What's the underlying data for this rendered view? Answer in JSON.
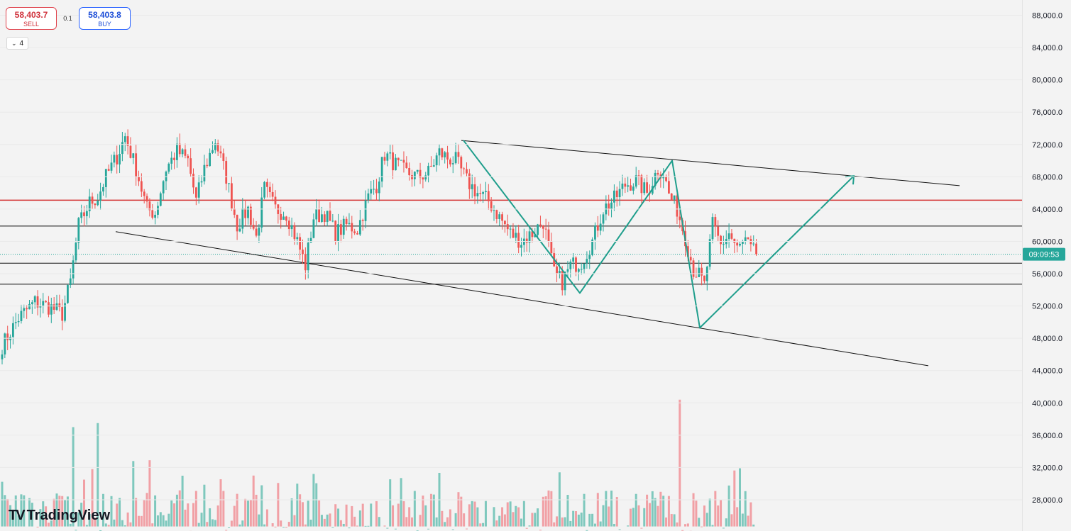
{
  "trade": {
    "sell_price": "58,403.7",
    "sell_label": "SELL",
    "spread": "0.1",
    "buy_price": "58,403.8",
    "buy_label": "BUY"
  },
  "collapse": {
    "count": "4"
  },
  "brand": {
    "name": "TradingView",
    "icon": "tradingview-logo-icon"
  },
  "colors": {
    "bull": "#26a69a",
    "bear": "#ef5350",
    "vol_bull": "#7ec8bd",
    "vol_bear": "#f1a0a5",
    "resistance": "#d32f2f",
    "pattern": "#1f9e8c",
    "price_tag": "#26a69a"
  },
  "chart_data": {
    "type": "candlestick",
    "y_ticks": [
      "88,000.0",
      "84,000.0",
      "80,000.0",
      "76,000.0",
      "72,000.0",
      "68,000.0",
      "64,000.0",
      "60,000.0",
      "56,000.0",
      "52,000.0",
      "48,000.0",
      "44,000.0",
      "40,000.0",
      "36,000.0",
      "32,000.0",
      "28,000.0"
    ],
    "ylim": [
      24000,
      89500
    ],
    "current_price": 58403.7,
    "countdown": "09:09:53",
    "horizontal_levels": [
      {
        "price": 65100,
        "role": "resistance"
      },
      {
        "price": 61900,
        "role": "level"
      },
      {
        "price": 57300,
        "role": "level"
      },
      {
        "price": 54700,
        "role": "level"
      }
    ],
    "trend_lines": [
      {
        "from": [
          650,
          72500
        ],
        "to": [
          1352,
          66900
        ]
      },
      {
        "from": [
          163,
          61200
        ],
        "to": [
          1308,
          44600
        ]
      }
    ],
    "pattern_path": [
      [
        653,
        72500
      ],
      [
        817,
        53600
      ],
      [
        947,
        70000
      ],
      [
        986,
        49300
      ],
      [
        1203,
        68100
      ]
    ],
    "anchors": [
      {
        "i": 0,
        "p": 47100
      },
      {
        "i": 6,
        "p": 50500
      },
      {
        "i": 12,
        "p": 52500
      },
      {
        "i": 18,
        "p": 51800
      },
      {
        "i": 22,
        "p": 51000
      },
      {
        "i": 25,
        "p": 55000
      },
      {
        "i": 28,
        "p": 62000
      },
      {
        "i": 32,
        "p": 64800
      },
      {
        "i": 35,
        "p": 65500
      },
      {
        "i": 38,
        "p": 68000
      },
      {
        "i": 42,
        "p": 70500
      },
      {
        "i": 45,
        "p": 73000
      },
      {
        "i": 49,
        "p": 69000
      },
      {
        "i": 53,
        "p": 64000
      },
      {
        "i": 56,
        "p": 63500
      },
      {
        "i": 60,
        "p": 69000
      },
      {
        "i": 64,
        "p": 71200
      },
      {
        "i": 68,
        "p": 70000
      },
      {
        "i": 71,
        "p": 65000
      },
      {
        "i": 74,
        "p": 69000
      },
      {
        "i": 78,
        "p": 72500
      },
      {
        "i": 82,
        "p": 68000
      },
      {
        "i": 86,
        "p": 62000
      },
      {
        "i": 90,
        "p": 64000
      },
      {
        "i": 93,
        "p": 60500
      },
      {
        "i": 96,
        "p": 66500
      },
      {
        "i": 100,
        "p": 64000
      },
      {
        "i": 104,
        "p": 63500
      },
      {
        "i": 108,
        "p": 60000
      },
      {
        "i": 111,
        "p": 57000
      },
      {
        "i": 114,
        "p": 63000
      },
      {
        "i": 118,
        "p": 63500
      },
      {
        "i": 122,
        "p": 61000
      },
      {
        "i": 126,
        "p": 62000
      },
      {
        "i": 130,
        "p": 61500
      },
      {
        "i": 134,
        "p": 65500
      },
      {
        "i": 137,
        "p": 67000
      },
      {
        "i": 140,
        "p": 70800
      },
      {
        "i": 144,
        "p": 69500
      },
      {
        "i": 148,
        "p": 68500
      },
      {
        "i": 152,
        "p": 68000
      },
      {
        "i": 156,
        "p": 68500
      },
      {
        "i": 160,
        "p": 71000
      },
      {
        "i": 163,
        "p": 70300
      },
      {
        "i": 166,
        "p": 70000
      },
      {
        "i": 170,
        "p": 67500
      },
      {
        "i": 174,
        "p": 66000
      },
      {
        "i": 178,
        "p": 65000
      },
      {
        "i": 182,
        "p": 63000
      },
      {
        "i": 186,
        "p": 61000
      },
      {
        "i": 190,
        "p": 60000
      },
      {
        "i": 194,
        "p": 61000
      },
      {
        "i": 198,
        "p": 62500
      },
      {
        "i": 202,
        "p": 56000
      },
      {
        "i": 205,
        "p": 55000
      },
      {
        "i": 208,
        "p": 57000
      },
      {
        "i": 212,
        "p": 57500
      },
      {
        "i": 216,
        "p": 60000
      },
      {
        "i": 220,
        "p": 64000
      },
      {
        "i": 224,
        "p": 65200
      },
      {
        "i": 228,
        "p": 67000
      },
      {
        "i": 232,
        "p": 67500
      },
      {
        "i": 236,
        "p": 66000
      },
      {
        "i": 240,
        "p": 69000
      },
      {
        "i": 242,
        "p": 68500
      },
      {
        "i": 244,
        "p": 65800
      },
      {
        "i": 247,
        "p": 64000
      },
      {
        "i": 250,
        "p": 60500
      },
      {
        "i": 253,
        "p": 56500
      },
      {
        "i": 255,
        "p": 55800
      },
      {
        "i": 257,
        "p": 54500
      },
      {
        "i": 260,
        "p": 62000
      },
      {
        "i": 263,
        "p": 59500
      },
      {
        "i": 266,
        "p": 61000
      },
      {
        "i": 269,
        "p": 59000
      },
      {
        "i": 272,
        "p": 60000
      },
      {
        "i": 274,
        "p": 58900
      },
      {
        "i": 276,
        "p": 58400
      }
    ],
    "volume_spikes": [
      {
        "i": 26,
        "v": 37000
      },
      {
        "i": 35,
        "v": 37500
      },
      {
        "i": 33,
        "v": 31800
      },
      {
        "i": 48,
        "v": 32800
      },
      {
        "i": 54,
        "v": 32900
      },
      {
        "i": 95,
        "v": 29800
      },
      {
        "i": 114,
        "v": 31200
      },
      {
        "i": 204,
        "v": 31400
      },
      {
        "i": 248,
        "v": 40400
      }
    ]
  }
}
